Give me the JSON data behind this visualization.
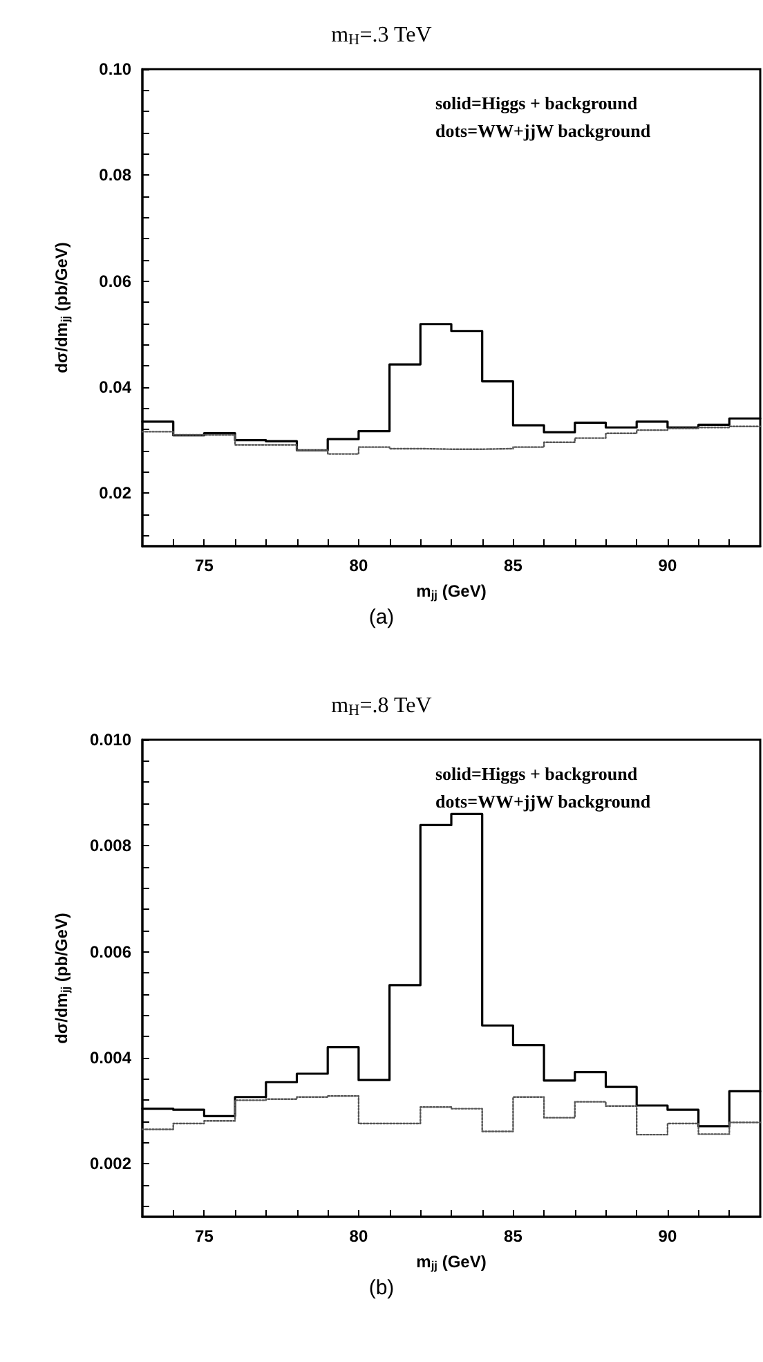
{
  "chart_data": [
    {
      "type": "histogram",
      "title": "m$_{H}$=.3 TeV",
      "xlabel": "m$_{jj}$ (GeV)",
      "ylabel": "dσ/dm$_{jj}$ (pb/GeV)",
      "annotations": [
        "solid=Higgs + background",
        "dots=WW+jjW background",
        "(a)"
      ],
      "bins": [
        73,
        74,
        75,
        76,
        77,
        78,
        79,
        80,
        81,
        82,
        83,
        84,
        85,
        86,
        87,
        88,
        89,
        90,
        91,
        92,
        93
      ],
      "series": [
        {
          "color": "#000000",
          "line_style": "solid",
          "values": [
            0.0335,
            0.0309,
            0.0313,
            0.03,
            0.0298,
            0.0281,
            0.0302,
            0.0317,
            0.0443,
            0.0519,
            0.0506,
            0.0411,
            0.0328,
            0.0315,
            0.0333,
            0.0324,
            0.0335,
            0.0324,
            0.0329,
            0.0341
          ]
        },
        {
          "color": "#555555",
          "line_style": "dotted",
          "values": [
            0.0316,
            0.031,
            0.031,
            0.0291,
            0.0291,
            0.0281,
            0.0274,
            0.0287,
            0.0284,
            0.0283,
            0.0283,
            0.0284,
            0.0287,
            0.0296,
            0.0304,
            0.0313,
            0.0319,
            0.0322,
            0.0324,
            0.0326
          ]
        }
      ],
      "xlim": [
        73,
        93
      ],
      "ylim": [
        0.01,
        0.1
      ],
      "xticks": [
        {
          "value": 74,
          "label": null
        },
        75,
        {
          "value": 76,
          "label": null
        },
        {
          "value": 77,
          "label": null
        },
        {
          "value": 78,
          "label": null
        },
        {
          "value": 79,
          "label": null
        },
        80,
        {
          "value": 81,
          "label": null
        },
        {
          "value": 82,
          "label": null
        },
        {
          "value": 83,
          "label": null
        },
        {
          "value": 84,
          "label": null
        },
        85,
        {
          "value": 86,
          "label": null
        },
        {
          "value": 87,
          "label": null
        },
        {
          "value": 88,
          "label": null
        },
        {
          "value": 89,
          "label": null
        },
        90,
        {
          "value": 91,
          "label": null
        },
        {
          "value": 92,
          "label": null
        }
      ],
      "yticks": [
        {
          "value": 0.012,
          "label": null
        },
        {
          "value": 0.016,
          "label": null
        },
        0.02,
        {
          "value": 0.024,
          "label": null
        },
        {
          "value": 0.028,
          "label": null
        },
        {
          "value": 0.032,
          "label": null
        },
        {
          "value": 0.036,
          "label": null
        },
        0.04,
        {
          "value": 0.044,
          "label": null
        },
        {
          "value": 0.048,
          "label": null
        },
        {
          "value": 0.052,
          "label": null
        },
        {
          "value": 0.056,
          "label": null
        },
        0.06,
        {
          "value": 0.064,
          "label": null
        },
        {
          "value": 0.068,
          "label": null
        },
        {
          "value": 0.072,
          "label": null
        },
        {
          "value": 0.076,
          "label": null
        },
        0.08,
        {
          "value": 0.084,
          "label": null
        },
        {
          "value": 0.088,
          "label": null
        },
        {
          "value": 0.092,
          "label": null
        },
        {
          "value": 0.096,
          "label": null
        },
        {
          "value": 0.1,
          "label": "0.10"
        }
      ]
    },
    {
      "type": "histogram",
      "title": "m$_{H}$=.8 TeV",
      "xlabel": "m$_{jj}$ (GeV)",
      "ylabel": "dσ/dm$_{jj}$ (pb/GeV)",
      "annotations": [
        "solid=Higgs + background",
        "dots=WW+jjW background",
        "(b)"
      ],
      "bins": [
        73,
        74,
        75,
        76,
        77,
        78,
        79,
        80,
        81,
        82,
        83,
        84,
        85,
        86,
        87,
        88,
        89,
        90,
        91,
        92,
        93
      ],
      "series": [
        {
          "color": "#000000",
          "line_style": "solid",
          "values": [
            0.00304,
            0.00302,
            0.0029,
            0.00326,
            0.00354,
            0.0037,
            0.0042,
            0.00358,
            0.00537,
            0.00839,
            0.0086,
            0.00461,
            0.00424,
            0.00357,
            0.00373,
            0.00345,
            0.0031,
            0.00302,
            0.00271,
            0.00337
          ]
        },
        {
          "color": "#555555",
          "line_style": "dotted",
          "values": [
            0.00265,
            0.00276,
            0.00281,
            0.0032,
            0.00322,
            0.00326,
            0.00328,
            0.00276,
            0.00276,
            0.00307,
            0.00304,
            0.00261,
            0.00326,
            0.00287,
            0.00317,
            0.00309,
            0.00255,
            0.00276,
            0.00256,
            0.00278
          ]
        }
      ],
      "xlim": [
        73,
        93
      ],
      "ylim": [
        0.001,
        0.01
      ],
      "xticks": [
        {
          "value": 74,
          "label": null
        },
        75,
        {
          "value": 76,
          "label": null
        },
        {
          "value": 77,
          "label": null
        },
        {
          "value": 78,
          "label": null
        },
        {
          "value": 79,
          "label": null
        },
        80,
        {
          "value": 81,
          "label": null
        },
        {
          "value": 82,
          "label": null
        },
        {
          "value": 83,
          "label": null
        },
        {
          "value": 84,
          "label": null
        },
        85,
        {
          "value": 86,
          "label": null
        },
        {
          "value": 87,
          "label": null
        },
        {
          "value": 88,
          "label": null
        },
        {
          "value": 89,
          "label": null
        },
        90,
        {
          "value": 91,
          "label": null
        },
        {
          "value": 92,
          "label": null
        }
      ],
      "yticks": [
        {
          "value": 0.0012,
          "label": null
        },
        {
          "value": 0.0016,
          "label": null
        },
        0.002,
        {
          "value": 0.0024,
          "label": null
        },
        {
          "value": 0.0028,
          "label": null
        },
        {
          "value": 0.0032,
          "label": null
        },
        {
          "value": 0.0036,
          "label": null
        },
        0.004,
        {
          "value": 0.0044,
          "label": null
        },
        {
          "value": 0.0048,
          "label": null
        },
        {
          "value": 0.0052,
          "label": null
        },
        {
          "value": 0.0056,
          "label": null
        },
        0.006,
        {
          "value": 0.0064,
          "label": null
        },
        {
          "value": 0.0068,
          "label": null
        },
        {
          "value": 0.0072,
          "label": null
        },
        {
          "value": 0.0076,
          "label": null
        },
        0.008,
        {
          "value": 0.0084,
          "label": null
        },
        {
          "value": 0.0088,
          "label": null
        },
        {
          "value": 0.0092,
          "label": null
        },
        {
          "value": 0.0096,
          "label": null
        },
        {
          "value": 0.01,
          "label": "0.010"
        }
      ]
    }
  ]
}
